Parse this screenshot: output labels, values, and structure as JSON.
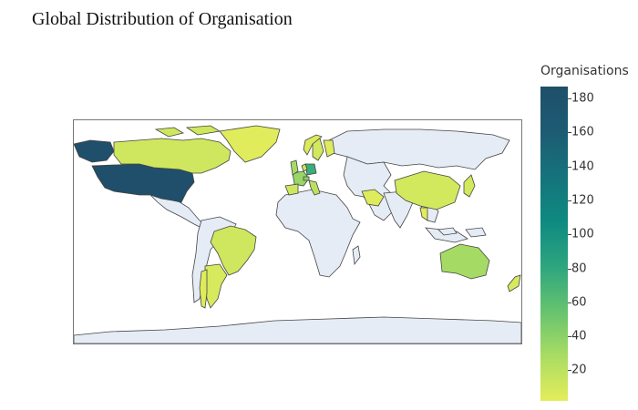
{
  "title": "Global Distribution of Organisation",
  "colorbar": {
    "title": "Organisations",
    "range": [
      2,
      187
    ],
    "ticks": [
      20,
      40,
      60,
      80,
      100,
      120,
      140,
      160,
      180
    ],
    "colorscale": [
      "#e4ed5b",
      "#a9dc63",
      "#66c36f",
      "#2da57f",
      "#0e8a80",
      "#15737c",
      "#1d5b73",
      "#1f4f6a"
    ]
  },
  "colors": {
    "no_data_land": "#e6ecf5",
    "ocean": "#ffffff",
    "border": "#444444"
  },
  "chart_data": {
    "type": "choropleth",
    "projection": "equirectangular",
    "regions": [
      {
        "name": "United States",
        "value": 187
      },
      {
        "name": "Canada",
        "value": 12
      },
      {
        "name": "Germany",
        "value": 75
      },
      {
        "name": "France",
        "value": 35
      },
      {
        "name": "United Kingdom",
        "value": 30
      },
      {
        "name": "Italy",
        "value": 20
      },
      {
        "name": "Spain",
        "value": 12
      },
      {
        "name": "Switzerland",
        "value": 40
      },
      {
        "name": "Netherlands",
        "value": 15
      },
      {
        "name": "Sweden",
        "value": 10
      },
      {
        "name": "Norway",
        "value": 6
      },
      {
        "name": "Finland",
        "value": 5
      },
      {
        "name": "Brazil",
        "value": 12
      },
      {
        "name": "Argentina",
        "value": 8
      },
      {
        "name": "Chile",
        "value": 5
      },
      {
        "name": "China",
        "value": 10
      },
      {
        "name": "Japan",
        "value": 10
      },
      {
        "name": "Iran",
        "value": 5
      },
      {
        "name": "Thailand",
        "value": 4
      },
      {
        "name": "Australia",
        "value": 30
      },
      {
        "name": "New Zealand",
        "value": 8
      },
      {
        "name": "Greenland",
        "value": 4
      }
    ]
  }
}
